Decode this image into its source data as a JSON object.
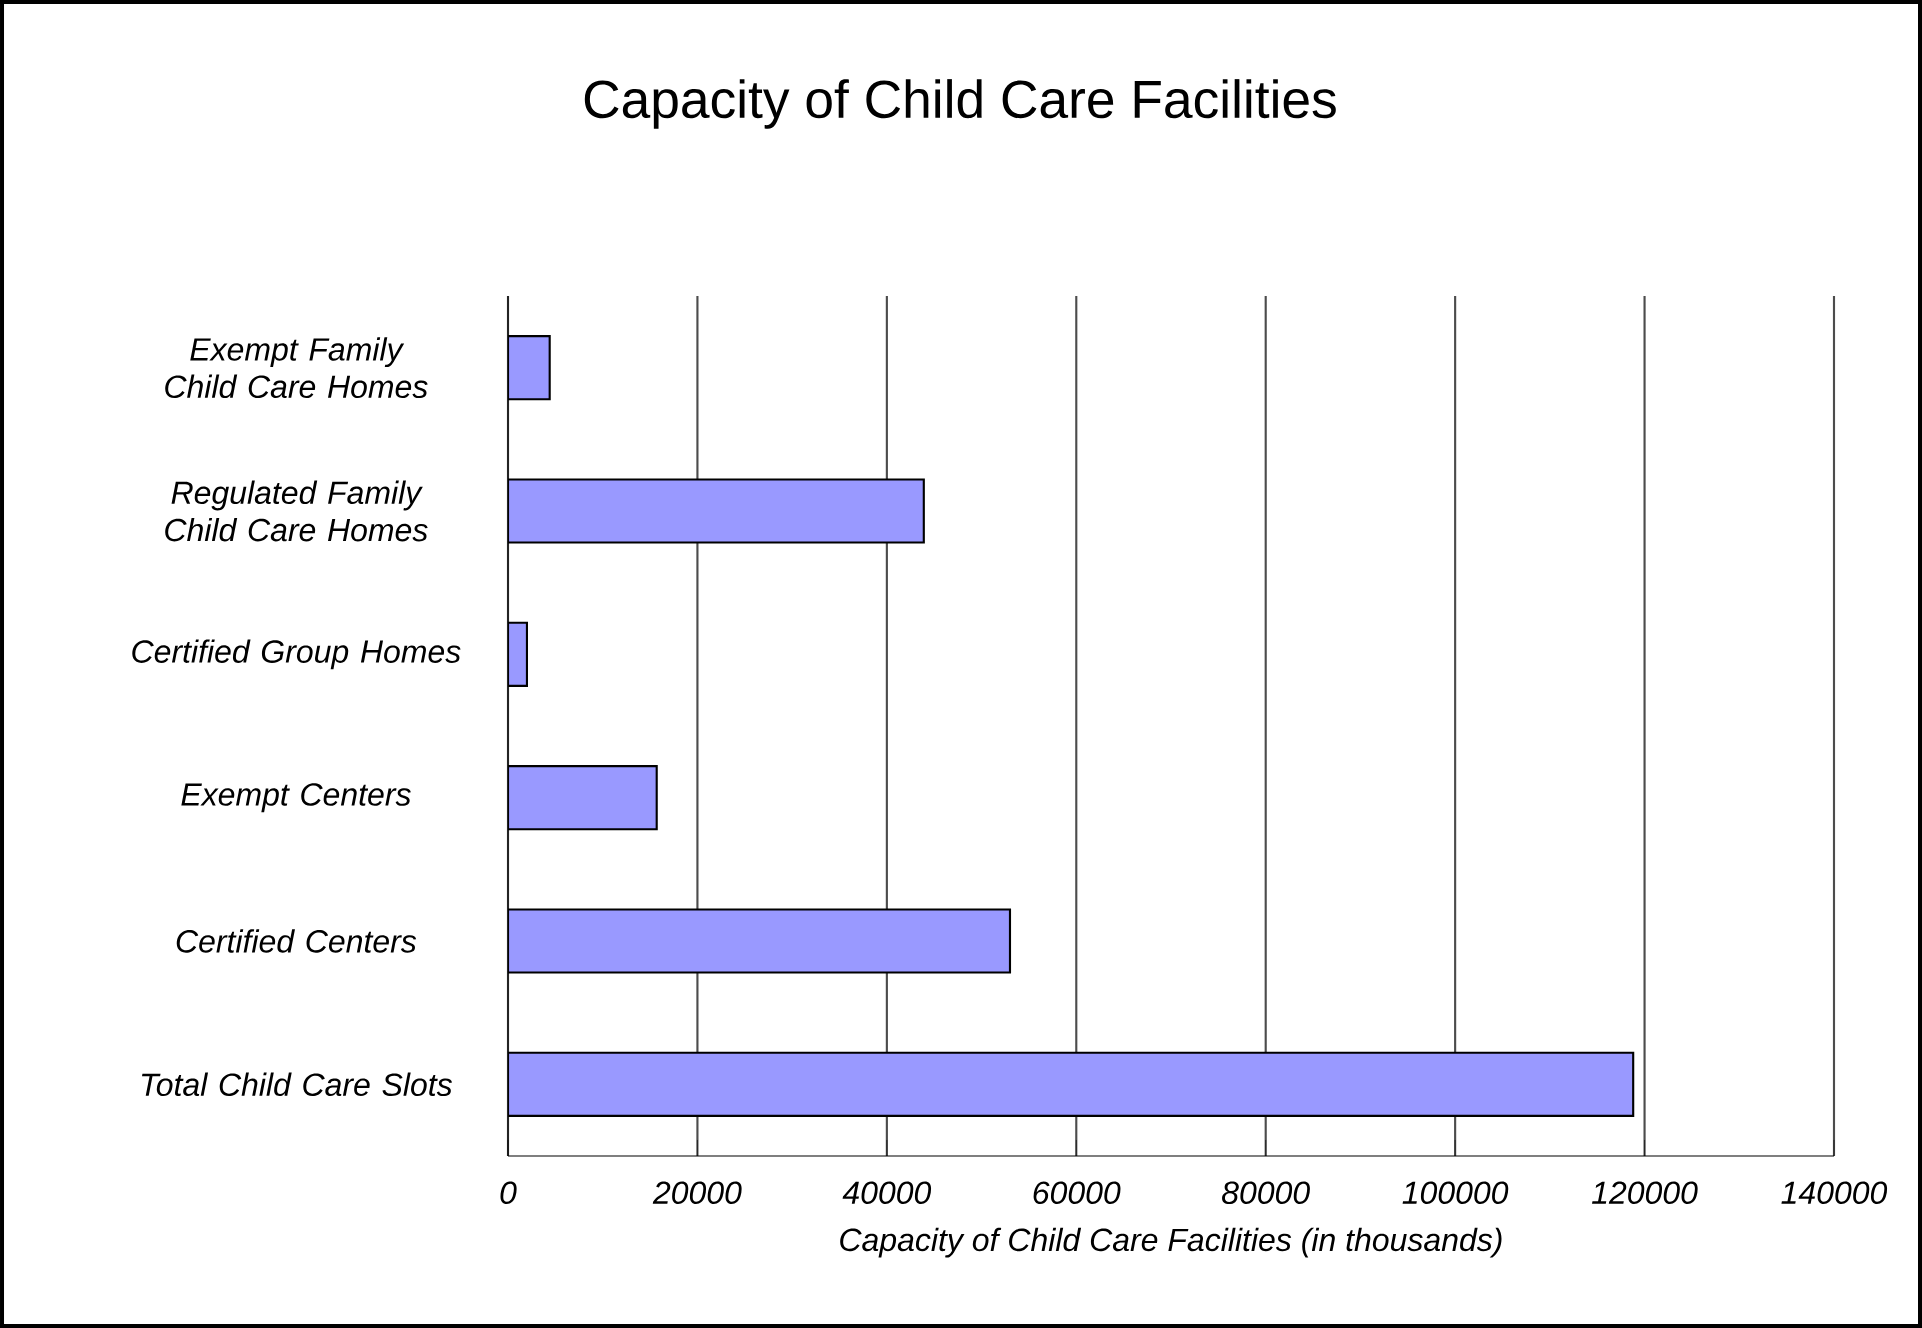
{
  "chart_data": {
    "type": "bar",
    "orientation": "horizontal",
    "title": "Capacity of Child Care Facilities",
    "xlabel": "Capacity of Child Care Facilities (in thousands)",
    "categories": [
      "Exempt Family Child Care Homes",
      "Regulated Family Child Care Homes",
      "Certified Group Homes",
      "Exempt Centers",
      "Certified Centers",
      "Total Child Care Slots"
    ],
    "values": [
      4400,
      43900,
      2000,
      15700,
      53000,
      118800
    ],
    "color": "#9999ff",
    "xlim": [
      0,
      140000
    ],
    "xticks": [
      0,
      20000,
      40000,
      60000,
      80000,
      100000,
      120000,
      140000
    ],
    "grid": "x"
  }
}
